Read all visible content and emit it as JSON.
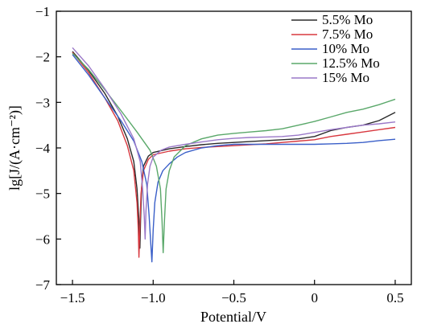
{
  "chart_data": {
    "type": "line",
    "title": "",
    "xlabel": "Potential/V",
    "ylabel": "lg[J/(A·cm⁻²)]",
    "xlim": [
      -1.6,
      0.6
    ],
    "ylim": [
      -7,
      -1
    ],
    "xticks": [
      -1.5,
      -1.0,
      -0.5,
      0,
      0.5
    ],
    "xtick_labels": [
      "−1.5",
      "−1.0",
      "−0.5",
      "0",
      "0.5"
    ],
    "yticks": [
      -1,
      -2,
      -3,
      -4,
      -5,
      -6,
      -7
    ],
    "ytick_labels": [
      "−1",
      "−2",
      "−3",
      "−4",
      "−5",
      "−6",
      "−7"
    ],
    "legend_position": "top-right",
    "grid": false,
    "series": [
      {
        "name": "5.5% Mo",
        "color": "#2b2b2b",
        "points": [
          [
            -1.5,
            -1.88
          ],
          [
            -1.4,
            -2.3
          ],
          [
            -1.3,
            -2.8
          ],
          [
            -1.22,
            -3.3
          ],
          [
            -1.16,
            -3.8
          ],
          [
            -1.12,
            -4.3
          ],
          [
            -1.1,
            -4.9
          ],
          [
            -1.088,
            -5.6
          ],
          [
            -1.082,
            -6.2
          ],
          [
            -1.078,
            -5.6
          ],
          [
            -1.072,
            -4.9
          ],
          [
            -1.06,
            -4.4
          ],
          [
            -1.03,
            -4.18
          ],
          [
            -1.0,
            -4.1
          ],
          [
            -0.9,
            -4.02
          ],
          [
            -0.8,
            -3.97
          ],
          [
            -0.7,
            -3.93
          ],
          [
            -0.6,
            -3.9
          ],
          [
            -0.5,
            -3.88
          ],
          [
            -0.4,
            -3.86
          ],
          [
            -0.3,
            -3.84
          ],
          [
            -0.2,
            -3.82
          ],
          [
            -0.1,
            -3.8
          ],
          [
            0.0,
            -3.75
          ],
          [
            0.1,
            -3.62
          ],
          [
            0.2,
            -3.55
          ],
          [
            0.3,
            -3.5
          ],
          [
            0.4,
            -3.4
          ],
          [
            0.5,
            -3.22
          ]
        ]
      },
      {
        "name": "7.5% Mo",
        "color": "#d8383f",
        "points": [
          [
            -1.5,
            -1.9
          ],
          [
            -1.4,
            -2.35
          ],
          [
            -1.3,
            -2.9
          ],
          [
            -1.22,
            -3.4
          ],
          [
            -1.16,
            -3.95
          ],
          [
            -1.12,
            -4.5
          ],
          [
            -1.1,
            -5.2
          ],
          [
            -1.092,
            -5.8
          ],
          [
            -1.088,
            -6.4
          ],
          [
            -1.082,
            -5.7
          ],
          [
            -1.075,
            -5.0
          ],
          [
            -1.06,
            -4.5
          ],
          [
            -1.03,
            -4.25
          ],
          [
            -1.0,
            -4.15
          ],
          [
            -0.9,
            -4.07
          ],
          [
            -0.8,
            -4.02
          ],
          [
            -0.7,
            -3.99
          ],
          [
            -0.6,
            -3.97
          ],
          [
            -0.5,
            -3.95
          ],
          [
            -0.4,
            -3.93
          ],
          [
            -0.3,
            -3.91
          ],
          [
            -0.2,
            -3.88
          ],
          [
            -0.1,
            -3.85
          ],
          [
            0.0,
            -3.82
          ],
          [
            0.1,
            -3.75
          ],
          [
            0.2,
            -3.7
          ],
          [
            0.3,
            -3.65
          ],
          [
            0.4,
            -3.6
          ],
          [
            0.5,
            -3.55
          ]
        ]
      },
      {
        "name": "10% Mo",
        "color": "#3a5fc8",
        "points": [
          [
            -1.5,
            -1.95
          ],
          [
            -1.4,
            -2.4
          ],
          [
            -1.3,
            -2.9
          ],
          [
            -1.2,
            -3.4
          ],
          [
            -1.12,
            -3.85
          ],
          [
            -1.07,
            -4.3
          ],
          [
            -1.04,
            -4.8
          ],
          [
            -1.025,
            -5.5
          ],
          [
            -1.015,
            -6.1
          ],
          [
            -1.008,
            -6.5
          ],
          [
            -1.0,
            -5.8
          ],
          [
            -0.99,
            -5.2
          ],
          [
            -0.97,
            -4.75
          ],
          [
            -0.94,
            -4.5
          ],
          [
            -0.9,
            -4.35
          ],
          [
            -0.85,
            -4.2
          ],
          [
            -0.8,
            -4.1
          ],
          [
            -0.7,
            -4.0
          ],
          [
            -0.6,
            -3.95
          ],
          [
            -0.5,
            -3.92
          ],
          [
            -0.4,
            -3.92
          ],
          [
            -0.3,
            -3.92
          ],
          [
            -0.2,
            -3.92
          ],
          [
            -0.1,
            -3.92
          ],
          [
            0.0,
            -3.92
          ],
          [
            0.1,
            -3.91
          ],
          [
            0.2,
            -3.9
          ],
          [
            0.3,
            -3.88
          ],
          [
            0.4,
            -3.84
          ],
          [
            0.5,
            -3.81
          ]
        ]
      },
      {
        "name": "12.5% Mo",
        "color": "#5aa86a",
        "points": [
          [
            -1.5,
            -1.92
          ],
          [
            -1.4,
            -2.28
          ],
          [
            -1.3,
            -2.72
          ],
          [
            -1.2,
            -3.18
          ],
          [
            -1.1,
            -3.65
          ],
          [
            -1.02,
            -4.05
          ],
          [
            -0.98,
            -4.4
          ],
          [
            -0.955,
            -4.9
          ],
          [
            -0.945,
            -5.6
          ],
          [
            -0.938,
            -6.3
          ],
          [
            -0.93,
            -5.6
          ],
          [
            -0.92,
            -4.9
          ],
          [
            -0.9,
            -4.5
          ],
          [
            -0.87,
            -4.2
          ],
          [
            -0.8,
            -3.95
          ],
          [
            -0.7,
            -3.8
          ],
          [
            -0.6,
            -3.72
          ],
          [
            -0.5,
            -3.68
          ],
          [
            -0.4,
            -3.65
          ],
          [
            -0.3,
            -3.62
          ],
          [
            -0.2,
            -3.58
          ],
          [
            -0.1,
            -3.5
          ],
          [
            0.0,
            -3.42
          ],
          [
            0.1,
            -3.32
          ],
          [
            0.2,
            -3.22
          ],
          [
            0.3,
            -3.15
          ],
          [
            0.4,
            -3.05
          ],
          [
            0.5,
            -2.93
          ]
        ]
      },
      {
        "name": "15% Mo",
        "color": "#9a78c8",
        "points": [
          [
            -1.5,
            -1.8
          ],
          [
            -1.4,
            -2.2
          ],
          [
            -1.3,
            -2.7
          ],
          [
            -1.2,
            -3.25
          ],
          [
            -1.12,
            -3.8
          ],
          [
            -1.08,
            -4.3
          ],
          [
            -1.065,
            -4.9
          ],
          [
            -1.055,
            -5.5
          ],
          [
            -1.05,
            -6.0
          ],
          [
            -1.045,
            -5.4
          ],
          [
            -1.035,
            -4.8
          ],
          [
            -1.02,
            -4.4
          ],
          [
            -1.0,
            -4.2
          ],
          [
            -0.95,
            -4.05
          ],
          [
            -0.9,
            -3.98
          ],
          [
            -0.8,
            -3.92
          ],
          [
            -0.7,
            -3.87
          ],
          [
            -0.6,
            -3.82
          ],
          [
            -0.5,
            -3.79
          ],
          [
            -0.4,
            -3.77
          ],
          [
            -0.3,
            -3.76
          ],
          [
            -0.2,
            -3.75
          ],
          [
            -0.1,
            -3.72
          ],
          [
            0.0,
            -3.66
          ],
          [
            0.1,
            -3.6
          ],
          [
            0.2,
            -3.55
          ],
          [
            0.3,
            -3.5
          ],
          [
            0.4,
            -3.47
          ],
          [
            0.5,
            -3.43
          ]
        ]
      }
    ]
  }
}
